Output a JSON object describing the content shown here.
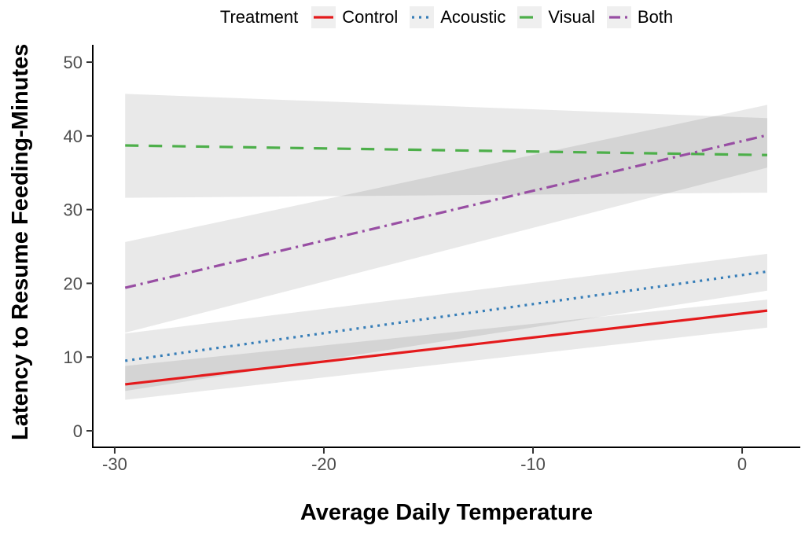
{
  "chart_data": {
    "type": "line",
    "title": "",
    "xlabel": "Average Daily Temperature",
    "ylabel": "Latency to Resume Feeding-Minutes",
    "legend_title": "Treatment",
    "legend_position": "top",
    "grid": false,
    "background": "#ffffff",
    "axis_color": "#000000",
    "tick_label_color": "#4d4d4d",
    "ribbon_color": "#000000",
    "ribbon_opacity": 0.085,
    "xlim": [
      -31.05,
      2.78
    ],
    "ylim": [
      -2.13,
      52.03
    ],
    "x_ticks": [
      -30,
      -20,
      -10,
      0
    ],
    "x_tick_labels": [
      "-30",
      "-20",
      "-10",
      "0"
    ],
    "y_ticks": [
      0,
      10,
      20,
      30,
      40,
      50
    ],
    "y_tick_labels": [
      "0",
      "10",
      "20",
      "30",
      "40",
      "50"
    ],
    "series": [
      {
        "name": "Control",
        "color": "#e41a1c",
        "linetype": "solid",
        "dash": "",
        "x": [
          -29.5,
          1.2
        ],
        "y": [
          6.3,
          16.3
        ],
        "ribbon_lower": [
          4.2,
          14.0
        ],
        "ribbon_upper": [
          8.8,
          17.8
        ]
      },
      {
        "name": "Acoustic",
        "color": "#377eb8",
        "linetype": "dotted",
        "dash": "3 6",
        "x": [
          -29.5,
          1.2
        ],
        "y": [
          9.5,
          21.6
        ],
        "ribbon_lower": [
          5.4,
          19.0
        ],
        "ribbon_upper": [
          13.2,
          24.0
        ]
      },
      {
        "name": "Visual",
        "color": "#4daf4a",
        "linetype": "dashed",
        "dash": "17 13",
        "x": [
          -29.5,
          1.2
        ],
        "y": [
          38.7,
          37.4
        ],
        "ribbon_lower": [
          31.6,
          32.3
        ],
        "ribbon_upper": [
          45.7,
          42.4
        ]
      },
      {
        "name": "Both",
        "color": "#984ea3",
        "linetype": "dotdash",
        "dash": "14 6 3 6",
        "x": [
          -29.5,
          1.2
        ],
        "y": [
          19.4,
          40.1
        ],
        "ribbon_lower": [
          13.3,
          35.7
        ],
        "ribbon_upper": [
          25.6,
          44.2
        ]
      }
    ]
  }
}
